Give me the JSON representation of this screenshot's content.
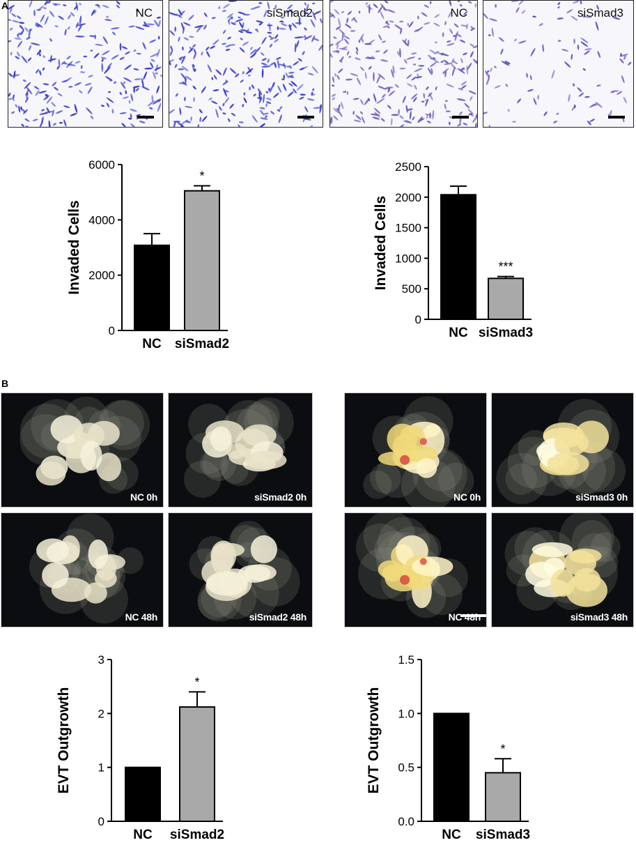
{
  "panels": {
    "a": {
      "letter": "A"
    },
    "b": {
      "letter": "B"
    }
  },
  "micrographs": [
    {
      "label": "NC",
      "density": 0.9,
      "color": "#3b3fcf"
    },
    {
      "label": "siSmad2",
      "density": 1.0,
      "color": "#3b3fcf"
    },
    {
      "label": "NC",
      "density": 1.0,
      "color": "#6a5fc0"
    },
    {
      "label": "siSmad3",
      "density": 0.35,
      "color": "#5a55c8"
    }
  ],
  "explants": [
    {
      "label": "NC 0h",
      "tint": "warm-white"
    },
    {
      "label": "siSmad2 0h",
      "tint": "warm-white"
    },
    {
      "label": "NC 0h",
      "tint": "red-yellow"
    },
    {
      "label": "siSmad3 0h",
      "tint": "yellow"
    },
    {
      "label": "NC 48h",
      "tint": "warm-white"
    },
    {
      "label": "siSmad2 48h",
      "tint": "warm-white"
    },
    {
      "label": "NC 48h",
      "tint": "red-yellow"
    },
    {
      "label": "siSmad3 48h",
      "tint": "yellow"
    }
  ],
  "chart_data": [
    {
      "type": "bar",
      "ylabel": "Invaded Cells",
      "categories": [
        "NC",
        "siSmad2"
      ],
      "values": [
        3080,
        5050
      ],
      "errors": [
        420,
        180
      ],
      "significance": [
        "",
        "*"
      ],
      "ylim": [
        0,
        6000
      ],
      "yticks": [
        "0",
        "2000",
        "4000",
        "6000"
      ],
      "colors": [
        "#000000",
        "#a9a9a9"
      ]
    },
    {
      "type": "bar",
      "ylabel": "Invaded Cells",
      "categories": [
        "NC",
        "siSmad3"
      ],
      "values": [
        2040,
        670
      ],
      "errors": [
        140,
        30
      ],
      "significance": [
        "",
        "***"
      ],
      "ylim": [
        0,
        2500
      ],
      "yticks": [
        "0",
        "500",
        "1000",
        "1500",
        "2000",
        "2500"
      ],
      "colors": [
        "#000000",
        "#a9a9a9"
      ]
    },
    {
      "type": "bar",
      "ylabel": "EVT Outgrowth",
      "categories": [
        "NC",
        "siSmad2"
      ],
      "values": [
        1.0,
        2.12
      ],
      "errors": [
        0,
        0.28
      ],
      "significance": [
        "",
        "*"
      ],
      "ylim": [
        0,
        3
      ],
      "yticks": [
        "0",
        "1",
        "2",
        "3"
      ],
      "colors": [
        "#000000",
        "#a9a9a9"
      ]
    },
    {
      "type": "bar",
      "ylabel": "EVT Outgrowth",
      "categories": [
        "NC",
        "siSmad3"
      ],
      "values": [
        1.0,
        0.45
      ],
      "errors": [
        0,
        0.13
      ],
      "significance": [
        "",
        "*"
      ],
      "ylim": [
        0,
        1.5
      ],
      "yticks": [
        "0.0",
        "0.5",
        "1.0",
        "1.5"
      ],
      "colors": [
        "#000000",
        "#a9a9a9"
      ]
    }
  ]
}
